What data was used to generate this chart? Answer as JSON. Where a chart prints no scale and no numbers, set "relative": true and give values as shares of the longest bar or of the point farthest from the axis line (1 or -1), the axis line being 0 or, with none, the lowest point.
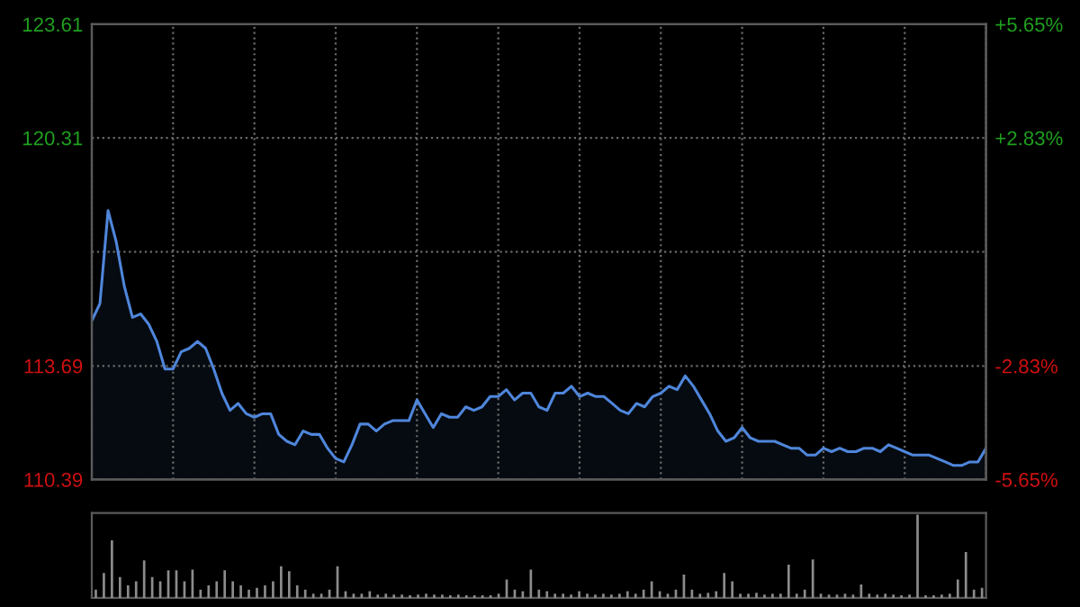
{
  "chart_data": [
    {
      "type": "area",
      "categories": [
        null,
        null,
        null,
        null,
        null,
        null,
        null,
        null,
        null,
        null,
        null,
        null,
        null,
        null,
        null,
        null,
        null,
        null,
        null,
        null,
        null,
        null,
        null,
        null,
        null,
        null,
        null,
        null,
        null,
        null,
        null,
        null,
        null,
        null,
        null,
        null,
        null,
        null,
        null,
        null,
        null,
        null,
        null,
        null,
        null,
        null,
        null,
        null,
        null,
        null,
        null,
        null,
        null,
        null,
        null,
        null,
        null,
        null,
        null,
        null,
        null,
        null,
        null,
        null,
        null,
        null,
        null,
        null,
        null,
        null,
        null,
        null,
        null,
        null,
        null,
        null,
        null,
        null,
        null,
        null,
        null,
        null,
        null,
        null,
        null,
        null,
        null,
        null,
        null,
        null,
        null,
        null,
        null,
        null,
        null,
        null,
        null,
        null,
        null,
        null,
        null,
        null,
        null,
        null,
        null,
        null,
        null,
        null,
        null,
        null,
        null
      ],
      "series": [
        {
          "color": "#4f86db",
          "values": [
            115.0,
            115.5,
            118.2,
            117.3,
            116.0,
            115.1,
            115.2,
            114.9,
            114.4,
            113.6,
            113.6,
            114.1,
            114.2,
            114.4,
            114.2,
            113.6,
            112.9,
            112.4,
            112.6,
            112.3,
            112.2,
            112.3,
            112.3,
            111.7,
            111.5,
            111.4,
            111.8,
            111.7,
            111.7,
            111.3,
            111.0,
            110.9,
            111.4,
            112.0,
            112.0,
            111.8,
            112.0,
            112.1,
            112.1,
            112.1,
            112.7,
            112.3,
            111.9,
            112.3,
            112.2,
            112.2,
            112.5,
            112.4,
            112.5,
            112.8,
            112.8,
            113.0,
            112.7,
            112.9,
            112.9,
            112.5,
            112.4,
            112.9,
            112.9,
            113.1,
            112.8,
            112.9,
            112.8,
            112.8,
            112.6,
            112.4,
            112.3,
            112.6,
            112.5,
            112.8,
            112.9,
            113.1,
            113.0,
            113.4,
            113.1,
            112.7,
            112.3,
            111.8,
            111.5,
            111.6,
            111.9,
            111.6,
            111.5,
            111.5,
            111.5,
            111.4,
            111.3,
            111.3,
            111.1,
            111.1,
            111.3,
            111.2,
            111.3,
            111.2,
            111.2,
            111.3,
            111.3,
            111.2,
            111.4,
            111.3,
            111.2,
            111.1,
            111.1,
            111.1,
            111.0,
            110.9,
            110.8,
            110.8,
            110.9,
            110.9,
            111.3
          ]
        }
      ],
      "ylim": [
        110.39,
        123.61
      ],
      "yticks": [
        110.39,
        113.69,
        {
          "value": 117.0,
          "label": null
        },
        120.31,
        123.61
      ],
      "y2lim": [
        -5.65,
        5.65
      ],
      "y2ticks": [
        {
          "value": -5.65,
          "label": "-5.65%"
        },
        {
          "value": -2.83,
          "label": "-2.83%"
        },
        {
          "value": 0,
          "label": null
        },
        {
          "value": 2.83,
          "label": "+2.83%"
        },
        {
          "value": 5.65,
          "label": "+5.65%"
        }
      ],
      "grid": true,
      "tick_labels": "y"
    },
    {
      "type": "bar",
      "relative": true,
      "tick_labels": false,
      "categories": [
        null,
        null,
        null,
        null,
        null,
        null,
        null,
        null,
        null,
        null,
        null,
        null,
        null,
        null,
        null,
        null,
        null,
        null,
        null,
        null,
        null,
        null,
        null,
        null,
        null,
        null,
        null,
        null,
        null,
        null,
        null,
        null,
        null,
        null,
        null,
        null,
        null,
        null,
        null,
        null,
        null,
        null,
        null,
        null,
        null,
        null,
        null,
        null,
        null,
        null,
        null,
        null,
        null,
        null,
        null,
        null,
        null,
        null,
        null,
        null,
        null,
        null,
        null,
        null,
        null,
        null,
        null,
        null,
        null,
        null,
        null,
        null,
        null,
        null,
        null,
        null,
        null,
        null,
        null,
        null,
        null,
        null,
        null,
        null,
        null,
        null,
        null,
        null,
        null,
        null,
        null,
        null,
        null,
        null,
        null,
        null,
        null,
        null,
        null,
        null,
        null,
        null,
        null,
        null,
        null,
        null,
        null,
        null,
        null,
        null,
        null
      ],
      "series": [
        {
          "color": "#8c8c8c",
          "values": [
            0.1,
            0.3,
            0.69,
            0.25,
            0.15,
            0.2,
            0.45,
            0.25,
            0.2,
            0.33,
            0.33,
            0.2,
            0.34,
            0.1,
            0.15,
            0.2,
            0.33,
            0.2,
            0.15,
            0.1,
            0.12,
            0.15,
            0.2,
            0.38,
            0.32,
            0.15,
            0.1,
            0.05,
            0.05,
            0.1,
            0.38,
            0.08,
            0.05,
            0.05,
            0.08,
            0.04,
            0.05,
            0.04,
            0.04,
            0.03,
            0.04,
            0.05,
            0.04,
            0.04,
            0.03,
            0.04,
            0.03,
            0.03,
            0.03,
            0.03,
            0.05,
            0.22,
            0.1,
            0.08,
            0.34,
            0.1,
            0.08,
            0.05,
            0.05,
            0.04,
            0.08,
            0.05,
            0.04,
            0.05,
            0.04,
            0.05,
            0.08,
            0.05,
            0.1,
            0.2,
            0.08,
            0.05,
            0.1,
            0.28,
            0.1,
            0.05,
            0.06,
            0.08,
            0.3,
            0.2,
            0.05,
            0.05,
            0.06,
            0.04,
            0.05,
            0.05,
            0.4,
            0.05,
            0.1,
            0.46,
            0.05,
            0.04,
            0.04,
            0.05,
            0.04,
            0.16,
            0.05,
            0.04,
            0.05,
            0.04,
            0.03,
            0.04,
            1.0,
            0.03,
            0.03,
            0.04,
            0.05,
            0.22,
            0.55,
            0.1,
            0.12
          ]
        }
      ]
    }
  ]
}
